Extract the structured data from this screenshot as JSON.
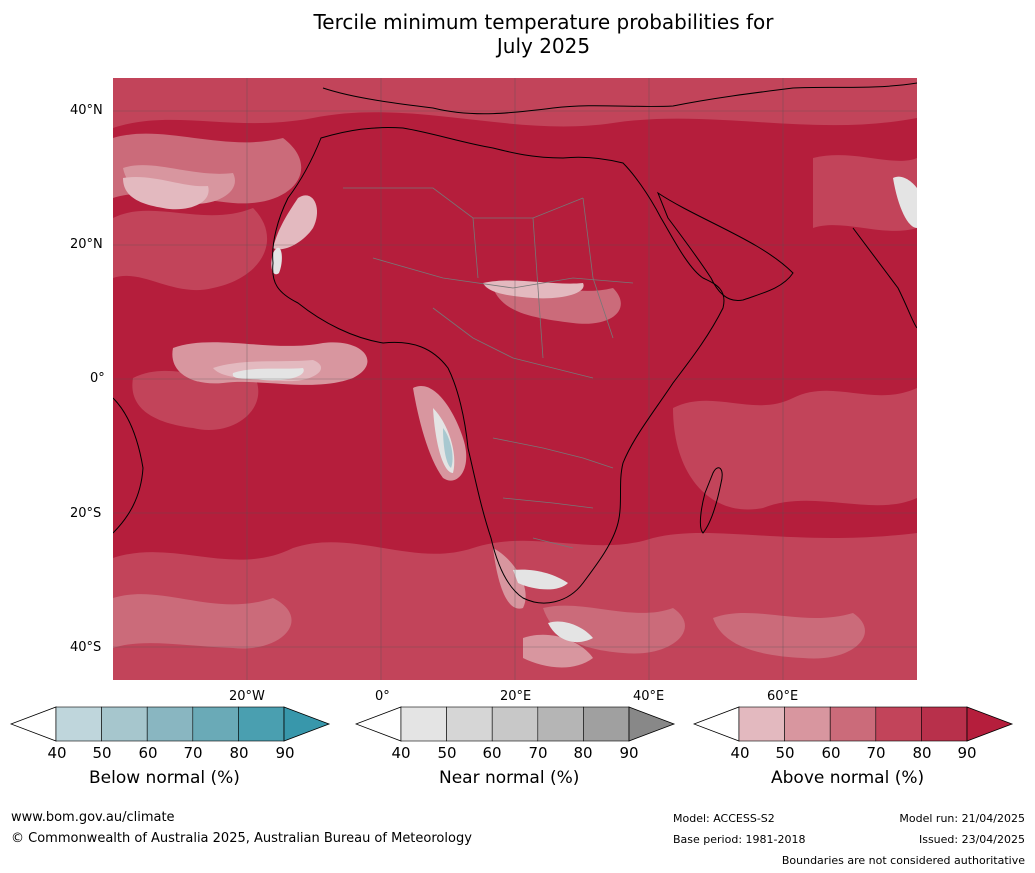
{
  "title": {
    "line1": "Tercile minimum temperature probabilities for",
    "line2": "July 2025"
  },
  "map": {
    "lat_labels": [
      "40°N",
      "20°N",
      "0°",
      "20°S",
      "40°S"
    ],
    "lon_labels": [
      "20°W",
      "0°",
      "20°E",
      "40°E",
      "60°E"
    ],
    "colors": {
      "above_90": "#b51e3c",
      "above_80": "#c2445a",
      "above_70": "#cb6b7a",
      "above_60": "#d8969f",
      "above_50": "#e3b9bf",
      "near": "#e4e4e4",
      "below": "#a8c8d0"
    }
  },
  "colorbars": [
    {
      "title": "Below normal (%)",
      "ticks": [
        "40",
        "50",
        "60",
        "70",
        "80",
        "90"
      ],
      "colors": [
        "#ffffff",
        "#bfd6dc",
        "#a6c6cd",
        "#89b6c1",
        "#6aaab7",
        "#4a9fb0",
        "#3897ab"
      ]
    },
    {
      "title": "Near normal (%)",
      "ticks": [
        "40",
        "50",
        "60",
        "70",
        "80",
        "90"
      ],
      "colors": [
        "#ffffff",
        "#e4e4e4",
        "#d6d6d6",
        "#c8c8c8",
        "#b5b5b5",
        "#a0a0a0",
        "#888888"
      ]
    },
    {
      "title": "Above normal (%)",
      "ticks": [
        "40",
        "50",
        "60",
        "70",
        "80",
        "90"
      ],
      "colors": [
        "#ffffff",
        "#e3b9bf",
        "#d8969f",
        "#cb6b7a",
        "#c2445a",
        "#b8304b",
        "#b51e3c"
      ]
    }
  ],
  "footer": {
    "website": "www.bom.gov.au/climate",
    "copyright": "© Commonwealth of Australia 2025, Australian Bureau of Meteorology",
    "model": "Model: ACCESS-S2",
    "base_period": "Base period: 1981-2018",
    "model_run": "Model run: 21/04/2025",
    "issued": "Issued: 23/04/2025",
    "boundaries": "Boundaries are not considered authoritative"
  }
}
